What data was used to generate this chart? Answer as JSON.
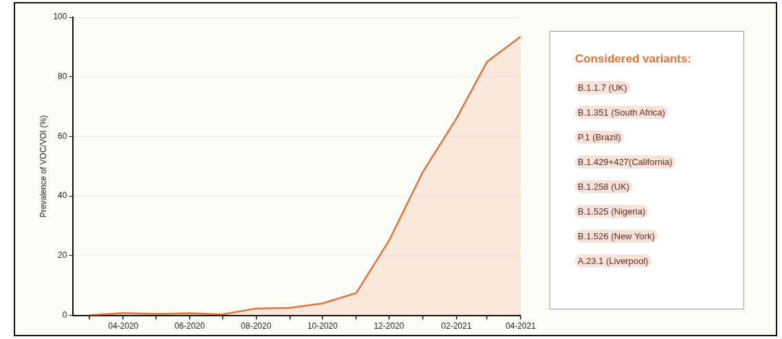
{
  "chart_data": {
    "type": "area",
    "ylabel": "Prevalence of VOC/VOI (%)",
    "legend_title": "Considered variants:",
    "annotations": [
      "B.1.1.7 (UK)",
      "B.1.351 (South Africa)",
      "P.1 (Brazil)",
      "B.1.429+427(California)",
      "B.1.258 (UK)",
      "B.1.525 (Nigeria)",
      "B.1.526 (New York)",
      "A.23.1 (Liverpool)"
    ],
    "x": [
      "2020-03",
      "2020-04",
      "2020-05",
      "2020-06",
      "2020-07",
      "2020-08",
      "2020-09",
      "2020-10",
      "2020-11",
      "2020-12",
      "2021-01",
      "2021-02",
      "2021-03",
      "2021-04"
    ],
    "series": [
      {
        "color": "#e0733a",
        "values": [
          0,
          0.8,
          0.5,
          0.7,
          0.3,
          2.3,
          2.5,
          4,
          7.5,
          25,
          48,
          66,
          85,
          93.5
        ]
      }
    ],
    "xlim": [
      "2020-02-15",
      "2021-04"
    ],
    "xticks": [
      {
        "value": "2020-03",
        "label": null
      },
      {
        "value": "2020-04",
        "label": "04-2020"
      },
      {
        "value": "2020-05",
        "label": null
      },
      {
        "value": "2020-06",
        "label": "06-2020"
      },
      {
        "value": "2020-07",
        "label": null
      },
      {
        "value": "2020-08",
        "label": "08-2020"
      },
      {
        "value": "2020-09",
        "label": null
      },
      {
        "value": "2020-10",
        "label": "10-2020"
      },
      {
        "value": "2020-11",
        "label": null
      },
      {
        "value": "2020-12",
        "label": "12-2020"
      },
      {
        "value": "2021-01",
        "label": null
      },
      {
        "value": "2021-02",
        "label": "02-2021"
      },
      {
        "value": "2021-03",
        "label": null
      },
      {
        "value": "2021-04",
        "label": "04-2021"
      }
    ],
    "ylim": [
      0,
      100
    ],
    "yticks": [
      0,
      20,
      40,
      60,
      80,
      100
    ],
    "grid": "y",
    "legend": false
  }
}
